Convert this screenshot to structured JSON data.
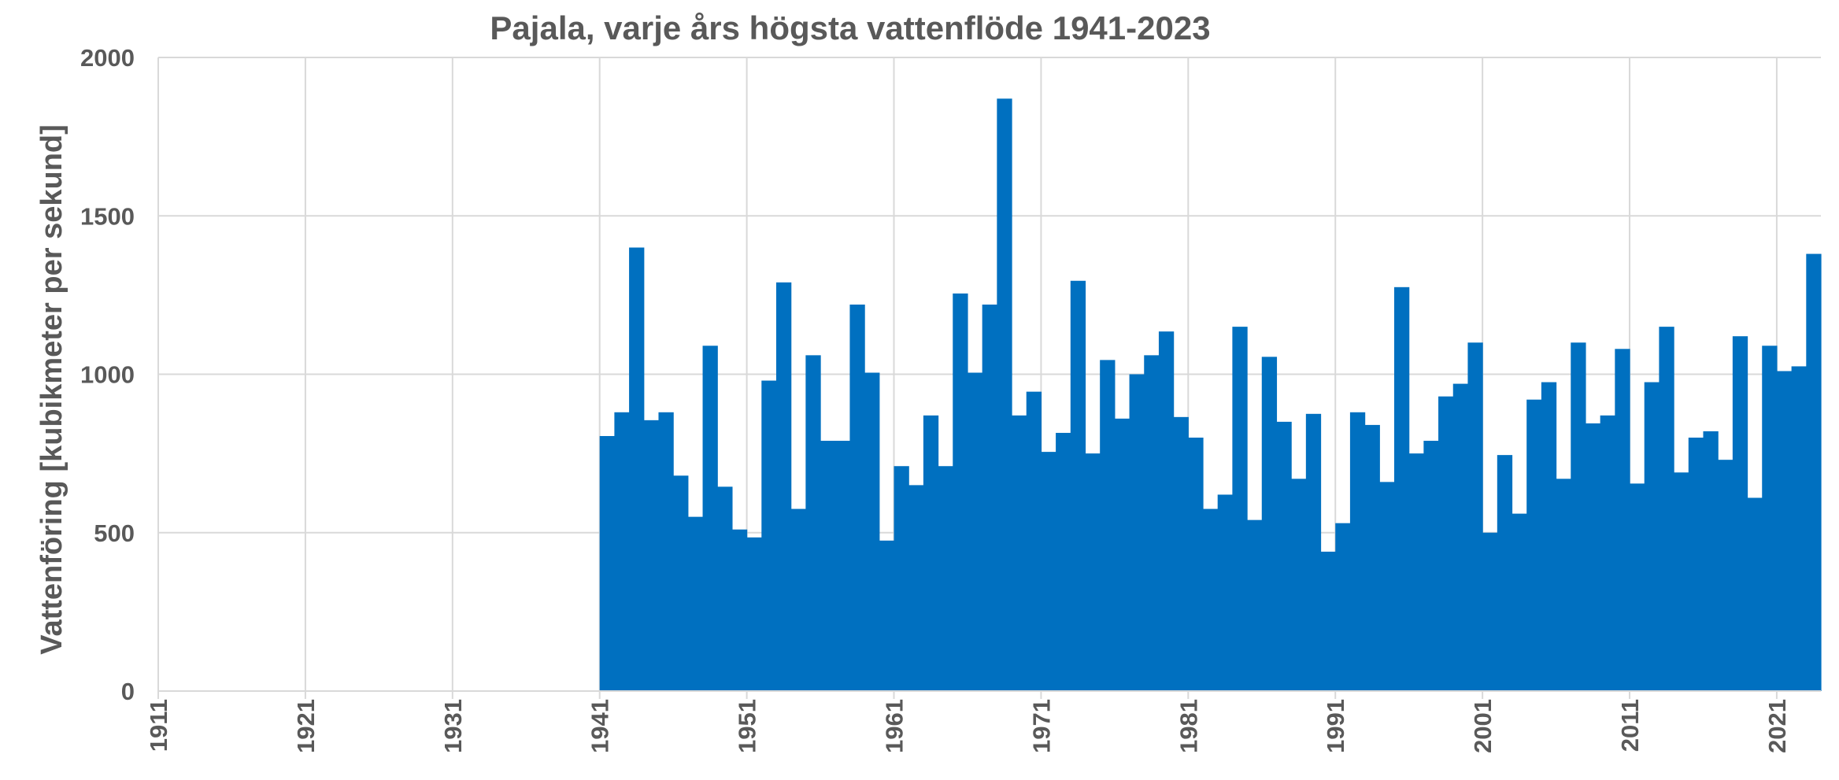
{
  "chart_data": {
    "type": "bar",
    "title": "Pajala, varje års högsta vattenflöde 1941-2023",
    "xlabel": "",
    "ylabel": "Vattenföring [kubikmeter per sekund]",
    "ylim": [
      0,
      2000
    ],
    "xlim": [
      1911,
      2023
    ],
    "yticks": [
      "0",
      "500",
      "1000",
      "1500",
      "2000"
    ],
    "xticks": [
      "1911",
      "1921",
      "1931",
      "1941",
      "1951",
      "1961",
      "1971",
      "1981",
      "1991",
      "2001",
      "2011",
      "2021"
    ],
    "grid": true,
    "bar_color": "#0070C0",
    "series": [
      {
        "x": [
          1941,
          1942,
          1943,
          1944,
          1945,
          1946,
          1947,
          1948,
          1949,
          1950,
          1951,
          1952,
          1953,
          1954,
          1955,
          1956,
          1957,
          1958,
          1959,
          1960,
          1961,
          1962,
          1963,
          1964,
          1965,
          1966,
          1967,
          1968,
          1969,
          1970,
          1971,
          1972,
          1973,
          1974,
          1975,
          1976,
          1977,
          1978,
          1979,
          1980,
          1981,
          1982,
          1983,
          1984,
          1985,
          1986,
          1987,
          1988,
          1989,
          1990,
          1991,
          1992,
          1993,
          1994,
          1995,
          1996,
          1997,
          1998,
          1999,
          2000,
          2001,
          2002,
          2003,
          2004,
          2005,
          2006,
          2007,
          2008,
          2009,
          2010,
          2011,
          2012,
          2013,
          2014,
          2015,
          2016,
          2017,
          2018,
          2019,
          2020,
          2021,
          2022,
          2023
        ],
        "values": [
          805,
          880,
          1400,
          855,
          880,
          680,
          550,
          1090,
          645,
          510,
          485,
          980,
          1290,
          575,
          1060,
          790,
          790,
          1220,
          1005,
          475,
          710,
          650,
          870,
          710,
          1255,
          1005,
          1220,
          1870,
          870,
          945,
          755,
          815,
          1295,
          750,
          1045,
          860,
          1000,
          1060,
          1135,
          865,
          800,
          575,
          620,
          1150,
          540,
          1055,
          850,
          670,
          875,
          440,
          530,
          880,
          840,
          660,
          1275,
          750,
          790,
          930,
          970,
          1100,
          500,
          745,
          560,
          920,
          975,
          670,
          1100,
          845,
          870,
          1080,
          655,
          975,
          1150,
          690,
          800,
          820,
          730,
          1120,
          610,
          1090,
          1010,
          1025,
          1380
        ]
      }
    ]
  }
}
